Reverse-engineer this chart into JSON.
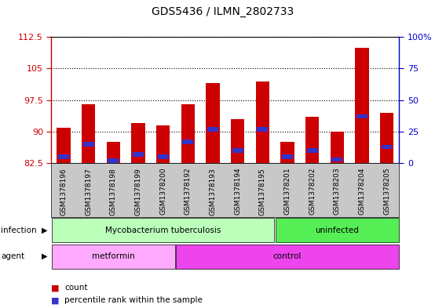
{
  "title": "GDS5436 / ILMN_2802733",
  "samples": [
    "GSM1378196",
    "GSM1378197",
    "GSM1378198",
    "GSM1378199",
    "GSM1378200",
    "GSM1378192",
    "GSM1378193",
    "GSM1378194",
    "GSM1378195",
    "GSM1378201",
    "GSM1378202",
    "GSM1378203",
    "GSM1378204",
    "GSM1378205"
  ],
  "counts": [
    91.0,
    96.5,
    87.5,
    92.0,
    91.5,
    96.5,
    101.5,
    93.0,
    102.0,
    87.5,
    93.5,
    90.0,
    110.0,
    94.5
  ],
  "percentiles": [
    5.0,
    15.0,
    2.0,
    7.0,
    5.0,
    17.0,
    27.0,
    10.0,
    27.0,
    5.0,
    10.0,
    3.0,
    37.0,
    13.0
  ],
  "ylim_left": [
    82.5,
    112.5
  ],
  "ylim_right": [
    0,
    100
  ],
  "yticks_left": [
    82.5,
    90.0,
    97.5,
    105.0,
    112.5
  ],
  "yticks_right": [
    0,
    25,
    50,
    75,
    100
  ],
  "bar_color": "#cc0000",
  "percentile_color": "#3333cc",
  "bar_bottom": 82.5,
  "infection_groups": [
    {
      "label": "Mycobacterium tuberculosis",
      "start": 0,
      "end": 9,
      "color": "#bbffbb"
    },
    {
      "label": "uninfected",
      "start": 9,
      "end": 14,
      "color": "#55ee55"
    }
  ],
  "agent_groups": [
    {
      "label": "metformin",
      "start": 0,
      "end": 5,
      "color": "#ffaaff"
    },
    {
      "label": "control",
      "start": 5,
      "end": 14,
      "color": "#ee44ee"
    }
  ],
  "infection_label": "infection",
  "agent_label": "agent",
  "legend_count_label": "count",
  "legend_percentile_label": "percentile rank within the sample",
  "axis_left_color": "#cc0000",
  "axis_right_color": "#0000cc",
  "background_color": "#ffffff",
  "xtick_bg_color": "#c8c8c8"
}
